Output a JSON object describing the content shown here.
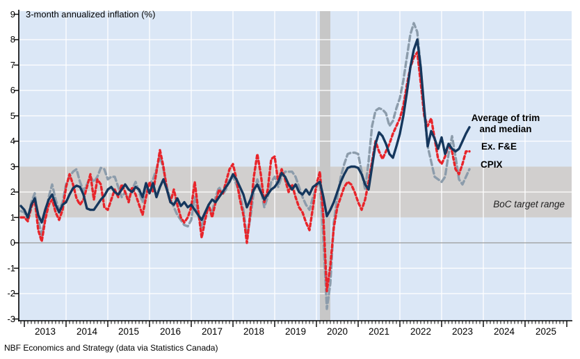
{
  "title": "3-month annualized inflation (%)",
  "footer": "NBF Economics and Strategy (data via Statistics Canada)",
  "legend": {
    "series1_line1": "Average of trim",
    "series1_line2": "and median",
    "series2": "Ex. F&E",
    "series3": "CPIX",
    "band_label": "BoC target range"
  },
  "colors": {
    "navy": "#15375d",
    "red": "#e8242a",
    "gray": "#8c9cab",
    "plot_bg": "#dbe7f6",
    "band": "#d1cfce",
    "recession": "#c7c7c7",
    "gridline": "#ffffff",
    "zero_line": "#9a9a9a",
    "axis": "#000000"
  },
  "chart_data": {
    "type": "line",
    "title": "3-month annualized inflation (%)",
    "frequency": "monthly",
    "x_start": "2012-12",
    "x_end": "2023-09",
    "x_axis": {
      "tick_years": [
        "2013",
        "2014",
        "2015",
        "2016",
        "2017",
        "2018",
        "2019",
        "2020",
        "2021",
        "2022",
        "2023",
        "2024",
        "2025"
      ]
    },
    "y_axis": {
      "min": -3,
      "max": 9,
      "ticks": [
        9,
        8,
        7,
        6,
        5,
        4,
        3,
        2,
        1,
        0,
        -1,
        -2,
        -3
      ],
      "gridlines_white": [
        8,
        7,
        6,
        5,
        4,
        2,
        -1,
        -2
      ]
    },
    "target_band": {
      "from": 1,
      "to": 3,
      "label": "BoC target range"
    },
    "recession": {
      "from": "2020-02",
      "to": "2020-04"
    },
    "series": [
      {
        "name": "CPIX",
        "color_key": "gray",
        "line_style": "dashed-long",
        "values": [
          1.25,
          1.2,
          0.9,
          1.6,
          1.95,
          0.9,
          0.3,
          1.0,
          1.8,
          2.3,
          1.7,
          1.3,
          1.6,
          2.3,
          2.6,
          2.8,
          2.9,
          2.4,
          2.05,
          2.3,
          2.6,
          2.4,
          2.6,
          2.95,
          2.9,
          2.5,
          2.6,
          2.6,
          2.2,
          1.8,
          2.0,
          1.7,
          2.1,
          2.4,
          2.0,
          1.6,
          2.2,
          2.3,
          2.5,
          2.9,
          3.4,
          2.9,
          2.2,
          1.7,
          1.4,
          1.1,
          0.9,
          0.7,
          0.65,
          0.9,
          1.8,
          1.1,
          0.6,
          1.1,
          1.4,
          1.2,
          1.8,
          2.2,
          1.9,
          2.1,
          2.5,
          2.6,
          2.3,
          1.9,
          1.3,
          0.2,
          1.0,
          2.0,
          2.5,
          2.1,
          1.4,
          1.8,
          2.4,
          2.6,
          2.2,
          2.6,
          2.8,
          2.8,
          2.8,
          2.6,
          2.2,
          1.8,
          1.5,
          1.3,
          1.8,
          2.2,
          2.4,
          0.2,
          -2.6,
          -1.6,
          0.8,
          1.8,
          2.6,
          3.1,
          3.5,
          3.55,
          3.55,
          3.5,
          2.8,
          2.1,
          3.2,
          4.6,
          5.2,
          5.3,
          5.25,
          5.1,
          4.6,
          4.8,
          5.3,
          5.7,
          6.4,
          7.3,
          8.2,
          8.65,
          8.3,
          6.9,
          5.1,
          3.8,
          3.2,
          2.6,
          2.5,
          2.4,
          2.6,
          3.5,
          4.2,
          3.4,
          2.5,
          2.3,
          2.6,
          2.9
        ]
      },
      {
        "name": "Ex. F&E",
        "color_key": "red",
        "line_style": "dashed-short",
        "values": [
          1.0,
          1.0,
          0.85,
          1.4,
          1.7,
          0.5,
          0.05,
          0.9,
          1.5,
          1.7,
          1.2,
          0.9,
          1.3,
          2.2,
          2.7,
          2.3,
          1.75,
          1.5,
          1.7,
          2.2,
          2.7,
          1.7,
          2.5,
          2.3,
          1.4,
          1.3,
          1.7,
          2.1,
          1.8,
          2.3,
          2.0,
          1.6,
          2.2,
          1.9,
          1.5,
          1.1,
          1.8,
          2.4,
          2.0,
          2.8,
          3.65,
          3.0,
          2.1,
          1.6,
          2.1,
          1.5,
          1.0,
          0.8,
          1.0,
          1.4,
          2.4,
          1.3,
          0.2,
          0.9,
          1.5,
          1.0,
          1.6,
          2.1,
          1.9,
          2.4,
          2.9,
          3.1,
          2.5,
          1.7,
          1.1,
          0.0,
          1.2,
          2.6,
          3.5,
          2.7,
          1.6,
          2.1,
          3.3,
          3.4,
          2.4,
          2.9,
          2.5,
          2.0,
          2.3,
          1.8,
          1.4,
          1.2,
          0.8,
          0.5,
          1.4,
          2.3,
          2.8,
          1.0,
          -1.9,
          -0.9,
          0.6,
          1.4,
          1.8,
          2.2,
          2.4,
          2.3,
          2.0,
          1.6,
          1.3,
          1.7,
          2.4,
          3.2,
          4.0,
          3.6,
          3.3,
          3.6,
          3.9,
          4.3,
          4.6,
          4.9,
          5.4,
          6.2,
          6.9,
          7.3,
          7.5,
          6.3,
          5.0,
          4.6,
          4.9,
          4.1,
          3.3,
          3.1,
          3.4,
          3.9,
          3.6,
          2.9,
          2.7,
          3.1,
          3.6,
          3.6
        ]
      },
      {
        "name": "Average of trim and median",
        "color_key": "navy",
        "line_style": "solid",
        "values": [
          1.45,
          1.3,
          1.0,
          1.5,
          1.75,
          1.1,
          0.8,
          1.3,
          1.7,
          1.9,
          1.5,
          1.2,
          1.5,
          1.6,
          1.9,
          2.15,
          2.25,
          2.2,
          1.9,
          1.35,
          1.3,
          1.3,
          1.5,
          1.7,
          1.85,
          2.1,
          2.2,
          2.0,
          1.9,
          2.1,
          2.3,
          2.1,
          2.0,
          2.2,
          2.1,
          1.8,
          2.35,
          1.95,
          2.35,
          1.8,
          2.2,
          2.5,
          2.1,
          1.6,
          1.5,
          1.75,
          1.45,
          1.6,
          1.4,
          1.5,
          1.3,
          1.1,
          0.9,
          1.2,
          1.5,
          1.7,
          1.6,
          1.8,
          2.0,
          2.2,
          2.4,
          2.7,
          2.5,
          2.2,
          1.9,
          1.4,
          1.7,
          2.1,
          2.3,
          2.0,
          1.7,
          1.9,
          2.1,
          2.2,
          2.4,
          2.75,
          2.6,
          2.3,
          2.1,
          2.3,
          2.0,
          1.9,
          2.1,
          1.9,
          2.2,
          2.3,
          2.4,
          1.8,
          1.05,
          1.3,
          1.6,
          2.0,
          2.4,
          2.7,
          2.95,
          3.0,
          3.0,
          2.95,
          2.7,
          2.3,
          2.1,
          3.0,
          3.9,
          4.35,
          4.2,
          3.9,
          3.5,
          3.35,
          3.8,
          4.3,
          5.0,
          5.9,
          6.9,
          7.6,
          8.0,
          6.9,
          5.3,
          3.8,
          4.4,
          4.1,
          3.7,
          4.15,
          3.5,
          3.9,
          3.7,
          3.6,
          3.7,
          4.0,
          4.3,
          4.55
        ]
      }
    ]
  }
}
